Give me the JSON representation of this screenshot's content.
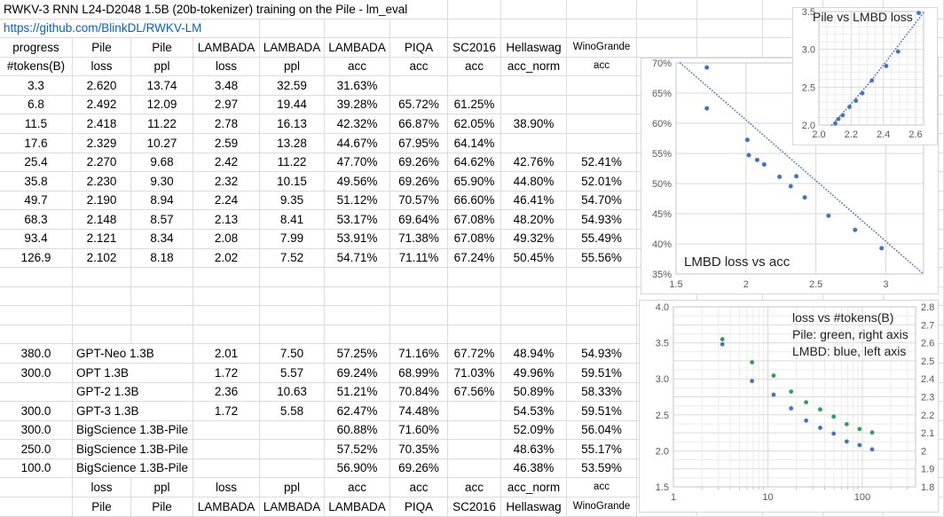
{
  "colors": {
    "point_blue": "#4472C4",
    "point_green": "#2E9E50",
    "link_blue": "#0563C1",
    "tick_text": "#595959",
    "chart_text": "#222222",
    "grid_major": "#d9d9d9",
    "grid_minor": "#ebebeb",
    "plot_border": "#c6c6c6"
  },
  "sheet": {
    "title": "RWKV-3 RNN L24-D2048 1.5B (20b-tokenizer) training on the Pile - lm_eval",
    "link": "https://github.com/BlinkDL/RWKV-LM",
    "header_row1": [
      "progress",
      "Pile",
      "Pile",
      "LAMBADA",
      "LAMBADA",
      "LAMBADA",
      "PIQA",
      "SC2016",
      "Hellaswag",
      "WinoGrande"
    ],
    "header_row2": [
      "#tokens(B)",
      "loss",
      "ppl",
      "loss",
      "ppl",
      "acc",
      "acc",
      "acc",
      "acc_norm",
      "acc"
    ],
    "data_rows": [
      [
        "3.3",
        "2.620",
        "13.74",
        "3.48",
        "32.59",
        "31.63%",
        "",
        "",
        "",
        ""
      ],
      [
        "6.8",
        "2.492",
        "12.09",
        "2.97",
        "19.44",
        "39.28%",
        "65.72%",
        "61.25%",
        "",
        ""
      ],
      [
        "11.5",
        "2.418",
        "11.22",
        "2.78",
        "16.13",
        "42.32%",
        "66.87%",
        "62.05%",
        "38.90%",
        ""
      ],
      [
        "17.6",
        "2.329",
        "10.27",
        "2.59",
        "13.28",
        "44.67%",
        "67.95%",
        "64.14%",
        "",
        ""
      ],
      [
        "25.4",
        "2.270",
        "9.68",
        "2.42",
        "11.22",
        "47.70%",
        "69.26%",
        "64.62%",
        "42.76%",
        "52.41%"
      ],
      [
        "35.8",
        "2.230",
        "9.30",
        "2.32",
        "10.15",
        "49.56%",
        "69.26%",
        "65.90%",
        "44.80%",
        "52.01%"
      ],
      [
        "49.7",
        "2.190",
        "8.94",
        "2.24",
        "9.35",
        "51.12%",
        "70.57%",
        "66.60%",
        "46.41%",
        "54.70%"
      ],
      [
        "68.3",
        "2.148",
        "8.57",
        "2.13",
        "8.41",
        "53.17%",
        "69.64%",
        "67.08%",
        "48.20%",
        "54.93%"
      ],
      [
        "93.4",
        "2.121",
        "8.34",
        "2.08",
        "7.99",
        "53.91%",
        "71.38%",
        "67.08%",
        "49.32%",
        "55.49%"
      ],
      [
        "126.9",
        "2.102",
        "8.18",
        "2.02",
        "7.52",
        "54.71%",
        "71.11%",
        "67.24%",
        "50.45%",
        "55.56%"
      ]
    ],
    "blank_rows": 4,
    "model_rows": [
      {
        "progress": "380.0",
        "name": "GPT-Neo 1.3B",
        "values": [
          "2.01",
          "7.50",
          "57.25%",
          "71.16%",
          "67.72%",
          "48.94%",
          "54.93%"
        ]
      },
      {
        "progress": "300.0",
        "name": "OPT 1.3B",
        "values": [
          "1.72",
          "5.57",
          "69.24%",
          "68.99%",
          "71.03%",
          "49.96%",
          "59.51%"
        ]
      },
      {
        "progress": "",
        "name": "GPT-2 1.3B",
        "values": [
          "2.36",
          "10.63",
          "51.21%",
          "70.84%",
          "67.56%",
          "50.89%",
          "58.33%"
        ]
      },
      {
        "progress": "300.0",
        "name": "GPT-3 1.3B",
        "values": [
          "1.72",
          "5.58",
          "62.47%",
          "74.48%",
          "",
          "54.53%",
          "59.51%"
        ]
      },
      {
        "progress": "300.0",
        "name": "BigScience 1.3B-Pile",
        "values": [
          "",
          "",
          "60.88%",
          "71.60%",
          "",
          "52.09%",
          "56.04%"
        ]
      },
      {
        "progress": "250.0",
        "name": "BigScience 1.3B-Pile",
        "values": [
          "",
          "",
          "57.52%",
          "70.35%",
          "",
          "48.63%",
          "55.17%"
        ]
      },
      {
        "progress": "100.0",
        "name": "BigScience 1.3B-Pile",
        "values": [
          "",
          "",
          "56.90%",
          "69.26%",
          "",
          "46.38%",
          "53.59%"
        ]
      }
    ],
    "footer_row1": [
      "",
      "loss",
      "ppl",
      "loss",
      "ppl",
      "acc",
      "acc",
      "acc",
      "acc_norm",
      "acc"
    ],
    "footer_row2": [
      "",
      "Pile",
      "Pile",
      "LAMBADA",
      "LAMBADA",
      "LAMBADA",
      "PIQA",
      "SC2016",
      "Hellaswag",
      "WinoGrande"
    ]
  },
  "chart_data": [
    {
      "type": "scatter",
      "title": "Pile vs LMBD loss",
      "xlabel": "Pile loss",
      "ylabel": "LAMBADA loss",
      "xlim": [
        2.0,
        2.65
      ],
      "ylim": [
        2.0,
        3.5
      ],
      "xticks": [
        2.0,
        2.2,
        2.4,
        2.6
      ],
      "xtick_labels": [
        "2.0",
        "2.2",
        "2.4",
        "2.6"
      ],
      "yticks": [
        2.0,
        2.5,
        3.0,
        3.5
      ],
      "ytick_labels": [
        "2.0",
        "2.5",
        "3.0",
        "3.5"
      ],
      "points": [
        [
          2.102,
          2.02
        ],
        [
          2.121,
          2.08
        ],
        [
          2.148,
          2.13
        ],
        [
          2.19,
          2.24
        ],
        [
          2.23,
          2.32
        ],
        [
          2.27,
          2.42
        ],
        [
          2.329,
          2.59
        ],
        [
          2.418,
          2.78
        ],
        [
          2.492,
          2.97
        ],
        [
          2.62,
          3.48
        ]
      ],
      "trendline": [
        [
          2.08,
          2.0
        ],
        [
          2.2,
          2.28
        ],
        [
          2.33,
          2.6
        ],
        [
          2.45,
          2.93
        ],
        [
          2.55,
          3.21
        ],
        [
          2.655,
          3.5
        ]
      ],
      "grid": "minor-x-0.05-minor-y-0.1"
    },
    {
      "type": "scatter",
      "title": "LMBD loss vs acc",
      "xlabel": "LAMBADA loss",
      "ylabel": "LAMBADA acc",
      "xlim": [
        1.5,
        3.27
      ],
      "ylim": [
        35,
        70
      ],
      "xticks": [
        1.5,
        2,
        2.5,
        3
      ],
      "xtick_labels": [
        "1.5",
        "2",
        "2.5",
        "3"
      ],
      "yticks": [
        70,
        65,
        60,
        55,
        50,
        45,
        40,
        35
      ],
      "ytick_labels": [
        "70%",
        "65%",
        "60%",
        "55%",
        "50%",
        "45%",
        "40%",
        "35%"
      ],
      "points": [
        [
          2.02,
          54.71
        ],
        [
          2.08,
          53.91
        ],
        [
          2.13,
          53.17
        ],
        [
          2.24,
          51.12
        ],
        [
          2.32,
          49.56
        ],
        [
          2.42,
          47.7
        ],
        [
          2.59,
          44.67
        ],
        [
          2.78,
          42.32
        ],
        [
          2.97,
          39.28
        ],
        [
          3.48,
          31.63
        ],
        [
          2.01,
          57.25
        ],
        [
          1.72,
          69.24
        ],
        [
          2.36,
          51.21
        ],
        [
          1.72,
          62.47
        ]
      ],
      "trendline": [
        [
          1.53,
          70
        ],
        [
          3.26,
          35.2
        ]
      ],
      "grid": "major-only"
    },
    {
      "type": "scatter",
      "legend_lines": [
        "loss vs #tokens(B)",
        "Pile: green, right axis",
        "LMBD: blue, left axis"
      ],
      "x_log": true,
      "xlim": [
        1,
        366
      ],
      "xticks": [
        1,
        10,
        100
      ],
      "xtick_labels": [
        "1",
        "10",
        "100"
      ],
      "ylim_left": [
        1.5,
        4.0
      ],
      "ytick_labels_left": [
        "4.0",
        "3.5",
        "3.0",
        "2.5",
        "2.0",
        "1.5"
      ],
      "yticks_left": [
        4.0,
        3.5,
        3.0,
        2.5,
        2.0,
        1.5
      ],
      "ylim_right": [
        1.8,
        2.8
      ],
      "ytick_labels_right": [
        "2.8",
        "2.7",
        "2.6",
        "2.5",
        "2.4",
        "2.3",
        "2.2",
        "2.1",
        "2",
        "1.9",
        "1.8"
      ],
      "yticks_right": [
        2.8,
        2.7,
        2.6,
        2.5,
        2.4,
        2.3,
        2.2,
        2.1,
        2.0,
        1.9,
        1.8
      ],
      "x": [
        3.3,
        6.8,
        11.5,
        17.6,
        25.4,
        35.8,
        49.7,
        68.3,
        93.4,
        126.9
      ],
      "series": [
        {
          "name": "Pile",
          "axis": "right",
          "values": [
            2.62,
            2.492,
            2.418,
            2.329,
            2.27,
            2.23,
            2.19,
            2.148,
            2.121,
            2.102
          ]
        },
        {
          "name": "LMBD",
          "axis": "left",
          "values": [
            3.48,
            2.97,
            2.78,
            2.59,
            2.42,
            2.32,
            2.24,
            2.13,
            2.08,
            2.02
          ]
        }
      ]
    }
  ]
}
